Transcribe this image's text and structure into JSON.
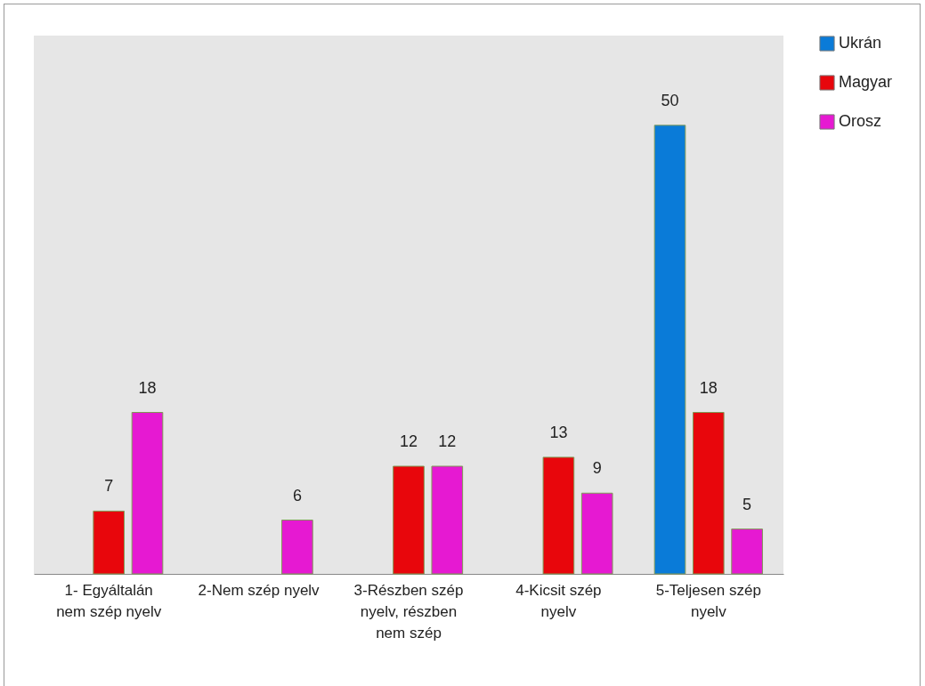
{
  "chart_data": {
    "type": "bar",
    "categories": [
      "1- Egyáltalán nem szép nyelv",
      "2-Nem szép nyelv",
      "3-Részben szép nyelv, részben nem szép",
      "4-Kicsit szép nyelv",
      "5-Teljesen szép nyelv"
    ],
    "series": [
      {
        "name": "Ukrán",
        "color": "#0a7bd8",
        "values": [
          null,
          null,
          null,
          null,
          50
        ]
      },
      {
        "name": "Magyar",
        "color": "#e8060c",
        "values": [
          7,
          null,
          12,
          13,
          18
        ]
      },
      {
        "name": "Orosz",
        "color": "#e619d2",
        "values": [
          18,
          6,
          12,
          9,
          5
        ]
      }
    ],
    "data_labels": true,
    "legend": "right",
    "grid": false
  }
}
